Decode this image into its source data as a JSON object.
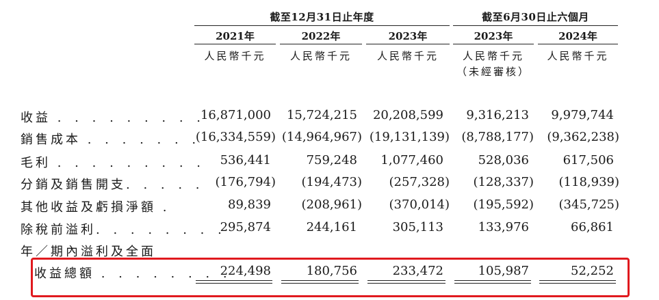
{
  "header": {
    "group_fy": "截至12月31日止年度",
    "group_6m": "截至6月30日止六個月",
    "years": [
      "2021年",
      "2022年",
      "2023年",
      "2023年",
      "2024年"
    ],
    "unit": "人民幣千元",
    "unaudited": "（未經審核）"
  },
  "rows": [
    {
      "label": "收益",
      "dots": "………",
      "values": [
        "16,871,000",
        "15,724,215",
        "20,208,599",
        "9,316,213",
        "9,979,744"
      ]
    },
    {
      "label": "銷售成本",
      "dots": "……",
      "values": [
        "(16,334,559)",
        "(14,964,967)",
        "(19,131,139)",
        "(8,788,177)",
        "(9,362,238)"
      ]
    },
    {
      "label": "毛利",
      "dots": "………",
      "values": [
        "536,441",
        "759,248",
        "1,077,460",
        "528,036",
        "617,506"
      ]
    },
    {
      "label": "分銷及銷售開支",
      "dots": "…",
      "values": [
        "(176,794)",
        "(194,473)",
        "(257,328)",
        "(128,337)",
        "(118,939)"
      ]
    },
    {
      "label": "其他收益及虧損淨額",
      "dots": ".",
      "values": [
        "89,839",
        "(208,961)",
        "(370,014)",
        "(195,592)",
        "(345,725)"
      ]
    },
    {
      "label": "除稅前溢利",
      "dots": "……",
      "values": [
        "295,874",
        "244,161",
        "305,113",
        "133,976",
        "66,861"
      ]
    }
  ],
  "total_row": {
    "label_line1": "年／期內溢利及全面",
    "label_line2": "收益總額",
    "dots": "……",
    "values": [
      "224,498",
      "180,756",
      "233,472",
      "105,987",
      "52,252"
    ]
  },
  "highlight_color": "#e0191e"
}
